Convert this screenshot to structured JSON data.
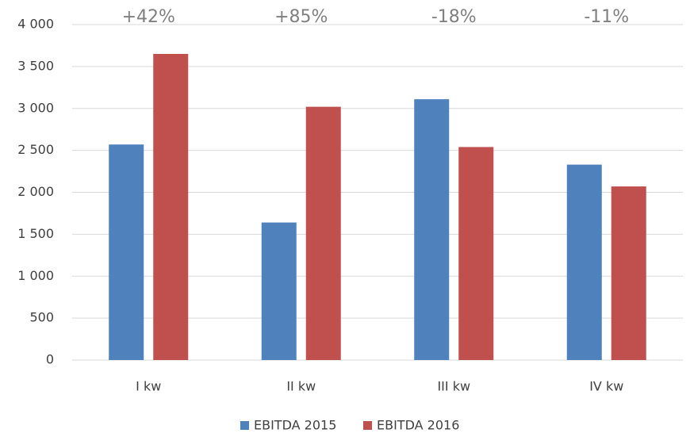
{
  "chart_data": {
    "type": "bar",
    "categories": [
      "I kw",
      "II kw",
      "III kw",
      "IV kw"
    ],
    "series": [
      {
        "name": "EBITDA 2015",
        "color": "#4f81bd",
        "values": [
          2570,
          1640,
          3110,
          2330
        ]
      },
      {
        "name": "EBITDA 2016",
        "color": "#c0504d",
        "values": [
          3650,
          3020,
          2540,
          2070
        ]
      }
    ],
    "annotations": [
      "+42%",
      "+85%",
      "-18%",
      "-11%"
    ],
    "ylim": [
      0,
      4000
    ],
    "yticks": [
      0,
      500,
      {
        "value": 1000,
        "label": "1 000"
      },
      {
        "value": 1500,
        "label": "1 500"
      },
      {
        "value": 2000,
        "label": "2 000"
      },
      {
        "value": 2500,
        "label": "2 500"
      },
      {
        "value": 3000,
        "label": "3 000"
      },
      {
        "value": 3500,
        "label": "3 500"
      },
      {
        "value": 4000,
        "label": "4 000"
      }
    ],
    "grid": true,
    "legend": "bottom"
  }
}
